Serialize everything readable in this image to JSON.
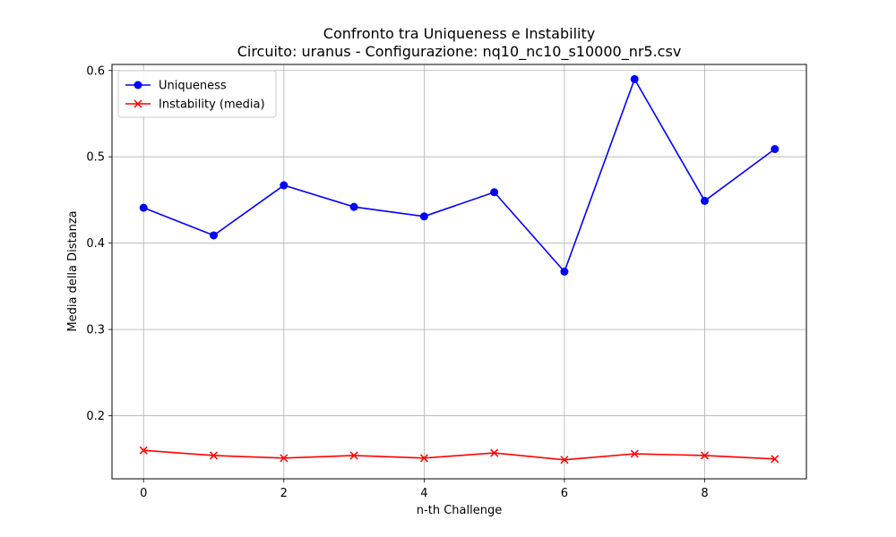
{
  "chart_data": {
    "type": "line",
    "title": "Confronto tra Uniqueness e Instability",
    "subtitle": "Circuito: uranus - Configurazione: nq10_nc10_s10000_nr5.csv",
    "xlabel": "n-th Challenge",
    "ylabel": "Media della Distanza",
    "xlim": [
      -0.45,
      9.45
    ],
    "ylim": [
      0.127,
      0.607
    ],
    "x": [
      0,
      1,
      2,
      3,
      4,
      5,
      6,
      7,
      8,
      9
    ],
    "xticks": [
      0,
      2,
      4,
      6,
      8
    ],
    "yticks": [
      0.2,
      0.3,
      0.4,
      0.5,
      0.6
    ],
    "grid": true,
    "legend_position": "top-left",
    "series": [
      {
        "name": "Uniqueness",
        "color": "#0000ff",
        "marker": "circle",
        "values": [
          0.441,
          0.409,
          0.467,
          0.442,
          0.431,
          0.459,
          0.367,
          0.59,
          0.449,
          0.509
        ]
      },
      {
        "name": "Instability (media)",
        "color": "#ff0000",
        "marker": "x",
        "values": [
          0.16,
          0.154,
          0.151,
          0.154,
          0.151,
          0.157,
          0.149,
          0.156,
          0.154,
          0.15
        ]
      }
    ]
  }
}
